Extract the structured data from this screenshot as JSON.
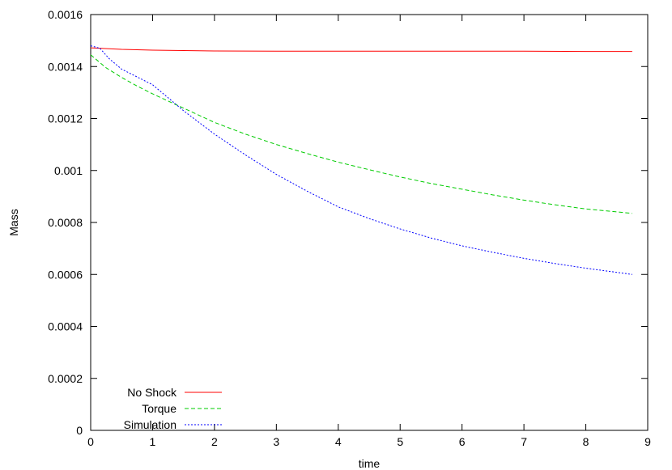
{
  "chart_data": {
    "type": "line",
    "title": "",
    "xlabel": "time",
    "ylabel": "Mass",
    "xlim": [
      0,
      9
    ],
    "ylim": [
      0,
      0.0016
    ],
    "grid": false,
    "legend_position": "bottom-left",
    "x_ticks": [
      "0",
      "1",
      "2",
      "3",
      "4",
      "5",
      "6",
      "7",
      "8",
      "9"
    ],
    "y_ticks": [
      "0",
      "0.0002",
      "0.0004",
      "0.0006",
      "0.0008",
      "0.001",
      "0.0012",
      "0.0014",
      "0.0016"
    ],
    "series": [
      {
        "name": "No Shock",
        "color": "#ff0000",
        "dash": "solid",
        "x": [
          0,
          0.5,
          1,
          2,
          3,
          4,
          5,
          6,
          7,
          8,
          8.75
        ],
        "y": [
          0.001472,
          0.001466,
          0.001463,
          0.00146,
          0.001459,
          0.001459,
          0.001459,
          0.001459,
          0.001459,
          0.001458,
          0.001458
        ]
      },
      {
        "name": "Torque",
        "color": "#00cc00",
        "dash": "dashed",
        "x": [
          0,
          0.25,
          0.5,
          0.75,
          1,
          1.5,
          2,
          2.5,
          3,
          3.5,
          4,
          4.5,
          5,
          5.5,
          6,
          6.5,
          7,
          7.5,
          8,
          8.75
        ],
        "y": [
          0.001445,
          0.001395,
          0.001358,
          0.001325,
          0.001295,
          0.00124,
          0.001185,
          0.00114,
          0.0011,
          0.001065,
          0.001032,
          0.001003,
          0.000975,
          0.00095,
          0.000928,
          0.000906,
          0.000886,
          0.000868,
          0.000852,
          0.000835
        ]
      },
      {
        "name": "Simulation",
        "color": "#0000ff",
        "dash": "dotted",
        "x": [
          0,
          0.15,
          0.3,
          0.5,
          0.75,
          1,
          1.25,
          1.5,
          2,
          2.5,
          3,
          3.5,
          4,
          4.5,
          5,
          5.5,
          6,
          6.5,
          7,
          7.5,
          8,
          8.75
        ],
        "y": [
          0.00148,
          0.00147,
          0.00143,
          0.00139,
          0.00136,
          0.00133,
          0.00128,
          0.00123,
          0.00114,
          0.00106,
          0.000985,
          0.00092,
          0.00086,
          0.000815,
          0.000775,
          0.00074,
          0.00071,
          0.000685,
          0.000662,
          0.000642,
          0.000624,
          0.0006
        ]
      }
    ]
  }
}
